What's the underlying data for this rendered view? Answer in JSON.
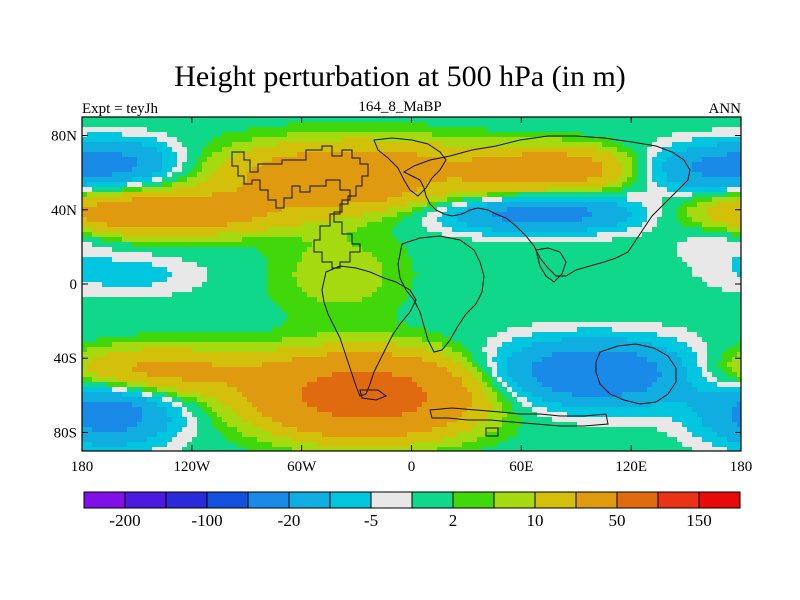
{
  "title": "Height perturbation at 500 hPa (in m)",
  "left_label": "Expt = teyJh",
  "center_label": "164_8_MaBP",
  "right_label": "ANN",
  "chart_data": {
    "type": "heatmap",
    "title": "Height perturbation at 500 hPa (in m)",
    "x_ticks": [
      "180",
      "120W",
      "60W",
      "0",
      "60E",
      "120E",
      "180"
    ],
    "x_tick_values": [
      -180,
      -120,
      -60,
      0,
      60,
      120,
      180
    ],
    "y_ticks": [
      "80N",
      "40N",
      "0",
      "40S",
      "80S"
    ],
    "y_tick_values": [
      80,
      40,
      0,
      -40,
      -80
    ],
    "xlim": [
      -180,
      180
    ],
    "ylim": [
      -90,
      90
    ],
    "colorbar": {
      "levels": [
        -200,
        -150,
        -100,
        -50,
        -20,
        -10,
        -5,
        -2,
        2,
        5,
        10,
        20,
        50,
        100,
        150,
        200
      ],
      "labels": [
        "-200",
        "-100",
        "-20",
        "-5",
        "2",
        "10",
        "50",
        "150"
      ],
      "label_levels": [
        -200,
        -100,
        -20,
        -5,
        2,
        10,
        50,
        150
      ],
      "colors": [
        "#7f10e8",
        "#4a1ae0",
        "#2a2ad8",
        "#1450e0",
        "#1a8ae8",
        "#10aee0",
        "#00c6e0",
        "#e8e8e8",
        "#10d88a",
        "#40d80a",
        "#a6da10",
        "#d2c00a",
        "#e09a10",
        "#e06a10",
        "#ec3214",
        "#e80a0a"
      ]
    },
    "anomaly_centers": [
      {
        "lon": -160,
        "lat": 65,
        "value": -22,
        "sx": 25,
        "sy": 9
      },
      {
        "lon": 155,
        "lat": 62,
        "value": -18,
        "sx": 25,
        "sy": 9
      },
      {
        "lon": 70,
        "lat": 38,
        "value": -28,
        "sx": 40,
        "sy": 7
      },
      {
        "lon": 10,
        "lat": 55,
        "value": -8,
        "sx": 18,
        "sy": 7
      },
      {
        "lon": 100,
        "lat": -48,
        "value": -35,
        "sx": 38,
        "sy": 12
      },
      {
        "lon": -165,
        "lat": -70,
        "value": -28,
        "sx": 25,
        "sy": 12
      },
      {
        "lon": -30,
        "lat": 58,
        "value": 40,
        "sx": 50,
        "sy": 12
      },
      {
        "lon": 80,
        "lat": 62,
        "value": 30,
        "sx": 30,
        "sy": 8
      },
      {
        "lon": -140,
        "lat": 38,
        "value": 35,
        "sx": 45,
        "sy": 8
      },
      {
        "lon": -25,
        "lat": -60,
        "value": 75,
        "sx": 38,
        "sy": 14
      },
      {
        "lon": -140,
        "lat": -47,
        "value": 25,
        "sx": 40,
        "sy": 9
      },
      {
        "lon": -40,
        "lat": 5,
        "value": 8,
        "sx": 25,
        "sy": 16
      },
      {
        "lon": -155,
        "lat": 5,
        "value": -7,
        "sx": 28,
        "sy": 8
      },
      {
        "lon": 170,
        "lat": 25,
        "value": -6,
        "sx": 20,
        "sy": 10
      }
    ]
  }
}
